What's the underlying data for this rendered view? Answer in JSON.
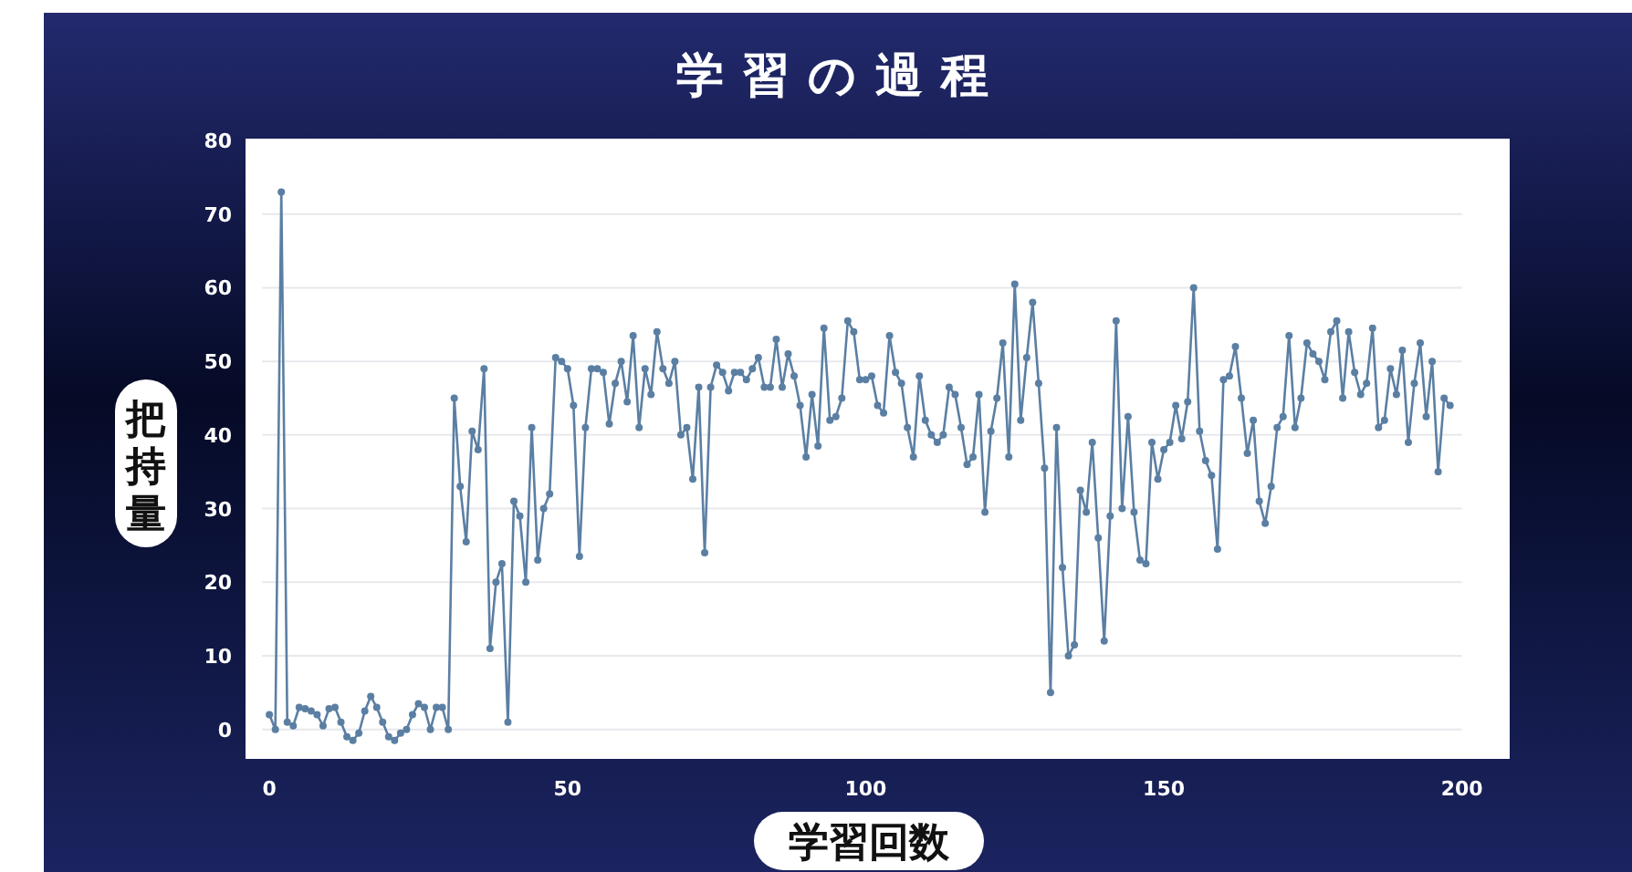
{
  "chart_data": {
    "type": "line",
    "title": "学習の過程",
    "xlabel": "学習回数",
    "ylabel": "把持量",
    "xlim": [
      -4,
      208
    ],
    "ylim": [
      -4,
      80
    ],
    "xticks": [
      0,
      50,
      100,
      150,
      200
    ],
    "yticks": [
      0,
      10,
      20,
      30,
      40,
      50,
      60,
      70,
      80
    ],
    "grid": "y",
    "marker": "circle",
    "line_style": "solid",
    "series": [
      {
        "color": "#5b7fa3",
        "x": [
          0,
          1,
          2,
          3,
          4,
          5,
          6,
          7,
          8,
          9,
          10,
          11,
          12,
          13,
          14,
          15,
          16,
          17,
          18,
          19,
          20,
          21,
          22,
          23,
          24,
          25,
          26,
          27,
          28,
          29,
          30,
          31,
          32,
          33,
          34,
          35,
          36,
          37,
          38,
          39,
          40,
          41,
          42,
          43,
          44,
          45,
          46,
          47,
          48,
          49,
          50,
          51,
          52,
          53,
          54,
          55,
          56,
          57,
          58,
          59,
          60,
          61,
          62,
          63,
          64,
          65,
          66,
          67,
          68,
          69,
          70,
          71,
          72,
          73,
          74,
          75,
          76,
          77,
          78,
          79,
          80,
          81,
          82,
          83,
          84,
          85,
          86,
          87,
          88,
          89,
          90,
          91,
          92,
          93,
          94,
          95,
          96,
          97,
          98,
          99,
          100,
          101,
          102,
          103,
          104,
          105,
          106,
          107,
          108,
          109,
          110,
          111,
          112,
          113,
          114,
          115,
          116,
          117,
          118,
          119,
          120,
          121,
          122,
          123,
          124,
          125,
          126,
          127,
          128,
          129,
          130,
          131,
          132,
          133,
          134,
          135,
          136,
          137,
          138,
          139,
          140,
          141,
          142,
          143,
          144,
          145,
          146,
          147,
          148,
          149,
          150,
          151,
          152,
          153,
          154,
          155,
          156,
          157,
          158,
          159,
          160,
          161,
          162,
          163,
          164,
          165,
          166,
          167,
          168,
          169,
          170,
          171,
          172,
          173,
          174,
          175,
          176,
          177,
          178,
          179,
          180,
          181,
          182,
          183,
          184,
          185,
          186,
          187,
          188,
          189,
          190,
          191,
          192,
          193,
          194,
          195,
          196,
          197,
          198
        ],
        "values": [
          2,
          0,
          73,
          1,
          0.5,
          3,
          2.8,
          2.5,
          2,
          0.5,
          2.8,
          3,
          1,
          -1,
          -1.5,
          -0.5,
          2.5,
          4.5,
          3,
          1,
          -1,
          -1.5,
          -0.5,
          0,
          2,
          3.5,
          3,
          0,
          3,
          3,
          0,
          45,
          33,
          25.5,
          40.5,
          38,
          49,
          11,
          20,
          22.5,
          1,
          31,
          29,
          20,
          41,
          23,
          30,
          32,
          50.5,
          50,
          49,
          44,
          23.5,
          41,
          49,
          49,
          48.5,
          41.5,
          47,
          50,
          44.5,
          53.5,
          41,
          49,
          45.5,
          54,
          49,
          47,
          50,
          40,
          41,
          34,
          46.5,
          24,
          46.5,
          49.5,
          48.5,
          46,
          48.5,
          48.5,
          47.5,
          49,
          50.5,
          46.5,
          46.5,
          53,
          46.5,
          51,
          48,
          44,
          37,
          45.5,
          38.5,
          54.5,
          42,
          42.5,
          45,
          55.5,
          54,
          47.5,
          47.5,
          48,
          44,
          43,
          53.5,
          48.5,
          47,
          41,
          37,
          48,
          42,
          40,
          39,
          40,
          46.5,
          45.5,
          41,
          36,
          37,
          45.5,
          29.5,
          40.5,
          45,
          52.5,
          37,
          60.5,
          42,
          50.5,
          58,
          47,
          35.5,
          5,
          41,
          22,
          10,
          11.5,
          32.5,
          29.5,
          39,
          26,
          12,
          29,
          55.5,
          30,
          42.5,
          29.5,
          23,
          22.5,
          39,
          34,
          38,
          39,
          44,
          39.5,
          44.5,
          60,
          40.5,
          36.5,
          34.5,
          24.5,
          47.5,
          48,
          52,
          45,
          37.5,
          42,
          31,
          28,
          33,
          41,
          42.5,
          53.5,
          41,
          45,
          52.5,
          51,
          50,
          47.5,
          54,
          55.5,
          45,
          54,
          48.5,
          45.5,
          47,
          54.5,
          41,
          42,
          49,
          45.5,
          51.5,
          39,
          47,
          52.5,
          42.5,
          50,
          35,
          45,
          44
        ]
      }
    ]
  }
}
